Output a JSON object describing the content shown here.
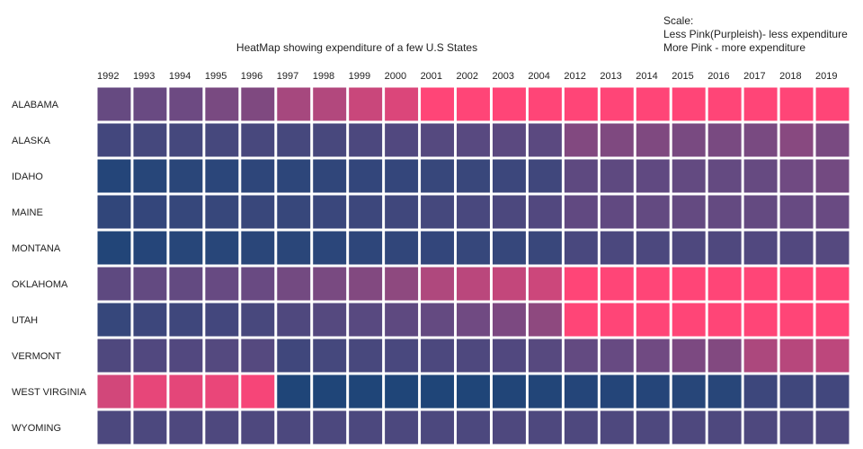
{
  "chart_data": {
    "type": "heatmap",
    "title": "HeatMap showing expenditure of a few U.S States",
    "xlabel": "",
    "ylabel": "",
    "x_categories": [
      "1992",
      "1993",
      "1994",
      "1995",
      "1996",
      "1997",
      "1998",
      "1999",
      "2000",
      "2001",
      "2002",
      "2003",
      "2004",
      "2012",
      "2013",
      "2014",
      "2015",
      "2016",
      "2017",
      "2018",
      "2019"
    ],
    "y_categories": [
      "ALABAMA",
      "ALASKA",
      "IDAHO",
      "MAINE",
      "MONTANA",
      "OKLAHOMA",
      "UTAH",
      "VERMONT",
      "WEST VIRGINIA",
      "WYOMING"
    ],
    "color_scale": {
      "min_color": "#1f4578",
      "mid_color": "#6a4a82",
      "max_color": "#ff4577"
    },
    "values": [
      [
        0.47,
        0.49,
        0.51,
        0.55,
        0.57,
        0.7,
        0.74,
        0.82,
        0.88,
        1.0,
        1.0,
        1.0,
        1.0,
        1.0,
        1.0,
        1.0,
        1.0,
        1.0,
        1.0,
        1.0,
        1.0
      ],
      [
        0.24,
        0.25,
        0.25,
        0.26,
        0.27,
        0.26,
        0.27,
        0.3,
        0.33,
        0.36,
        0.38,
        0.4,
        0.4,
        0.58,
        0.57,
        0.57,
        0.55,
        0.55,
        0.55,
        0.6,
        0.55
      ],
      [
        0.03,
        0.05,
        0.07,
        0.08,
        0.1,
        0.09,
        0.11,
        0.13,
        0.14,
        0.16,
        0.17,
        0.19,
        0.22,
        0.42,
        0.42,
        0.43,
        0.45,
        0.46,
        0.47,
        0.52,
        0.53
      ],
      [
        0.12,
        0.14,
        0.15,
        0.16,
        0.17,
        0.16,
        0.18,
        0.2,
        0.22,
        0.25,
        0.28,
        0.3,
        0.34,
        0.44,
        0.44,
        0.45,
        0.46,
        0.46,
        0.46,
        0.48,
        0.49
      ],
      [
        0.02,
        0.04,
        0.05,
        0.06,
        0.07,
        0.07,
        0.08,
        0.1,
        0.12,
        0.13,
        0.15,
        0.15,
        0.17,
        0.28,
        0.29,
        0.3,
        0.31,
        0.32,
        0.33,
        0.34,
        0.36
      ],
      [
        0.42,
        0.45,
        0.45,
        0.48,
        0.49,
        0.53,
        0.55,
        0.58,
        0.62,
        0.73,
        0.77,
        0.8,
        0.83,
        1.0,
        1.0,
        1.0,
        1.0,
        1.0,
        1.0,
        1.0,
        1.0
      ],
      [
        0.15,
        0.2,
        0.21,
        0.24,
        0.27,
        0.32,
        0.36,
        0.38,
        0.42,
        0.46,
        0.52,
        0.56,
        0.62,
        1.0,
        1.0,
        1.0,
        1.0,
        1.0,
        1.0,
        1.0,
        1.0
      ],
      [
        0.32,
        0.33,
        0.34,
        0.35,
        0.36,
        0.22,
        0.25,
        0.27,
        0.28,
        0.3,
        0.31,
        0.33,
        0.37,
        0.45,
        0.48,
        0.52,
        0.56,
        0.58,
        0.72,
        0.76,
        0.78
      ],
      [
        0.85,
        0.92,
        0.91,
        0.93,
        0.97,
        0.0,
        0.0,
        0.0,
        0.0,
        0.0,
        0.0,
        0.01,
        0.02,
        0.03,
        0.03,
        0.04,
        0.05,
        0.06,
        0.2,
        0.22,
        0.23
      ],
      [
        0.3,
        0.3,
        0.31,
        0.31,
        0.31,
        0.3,
        0.3,
        0.3,
        0.3,
        0.3,
        0.3,
        0.31,
        0.31,
        0.31,
        0.31,
        0.31,
        0.31,
        0.31,
        0.31,
        0.31,
        0.31
      ]
    ],
    "legend": {
      "placement": "top-right",
      "lines": [
        "Scale:",
        "Less Pink(Purpleish)- less expenditure",
        "More Pink - more expenditure"
      ]
    },
    "grid": false
  }
}
